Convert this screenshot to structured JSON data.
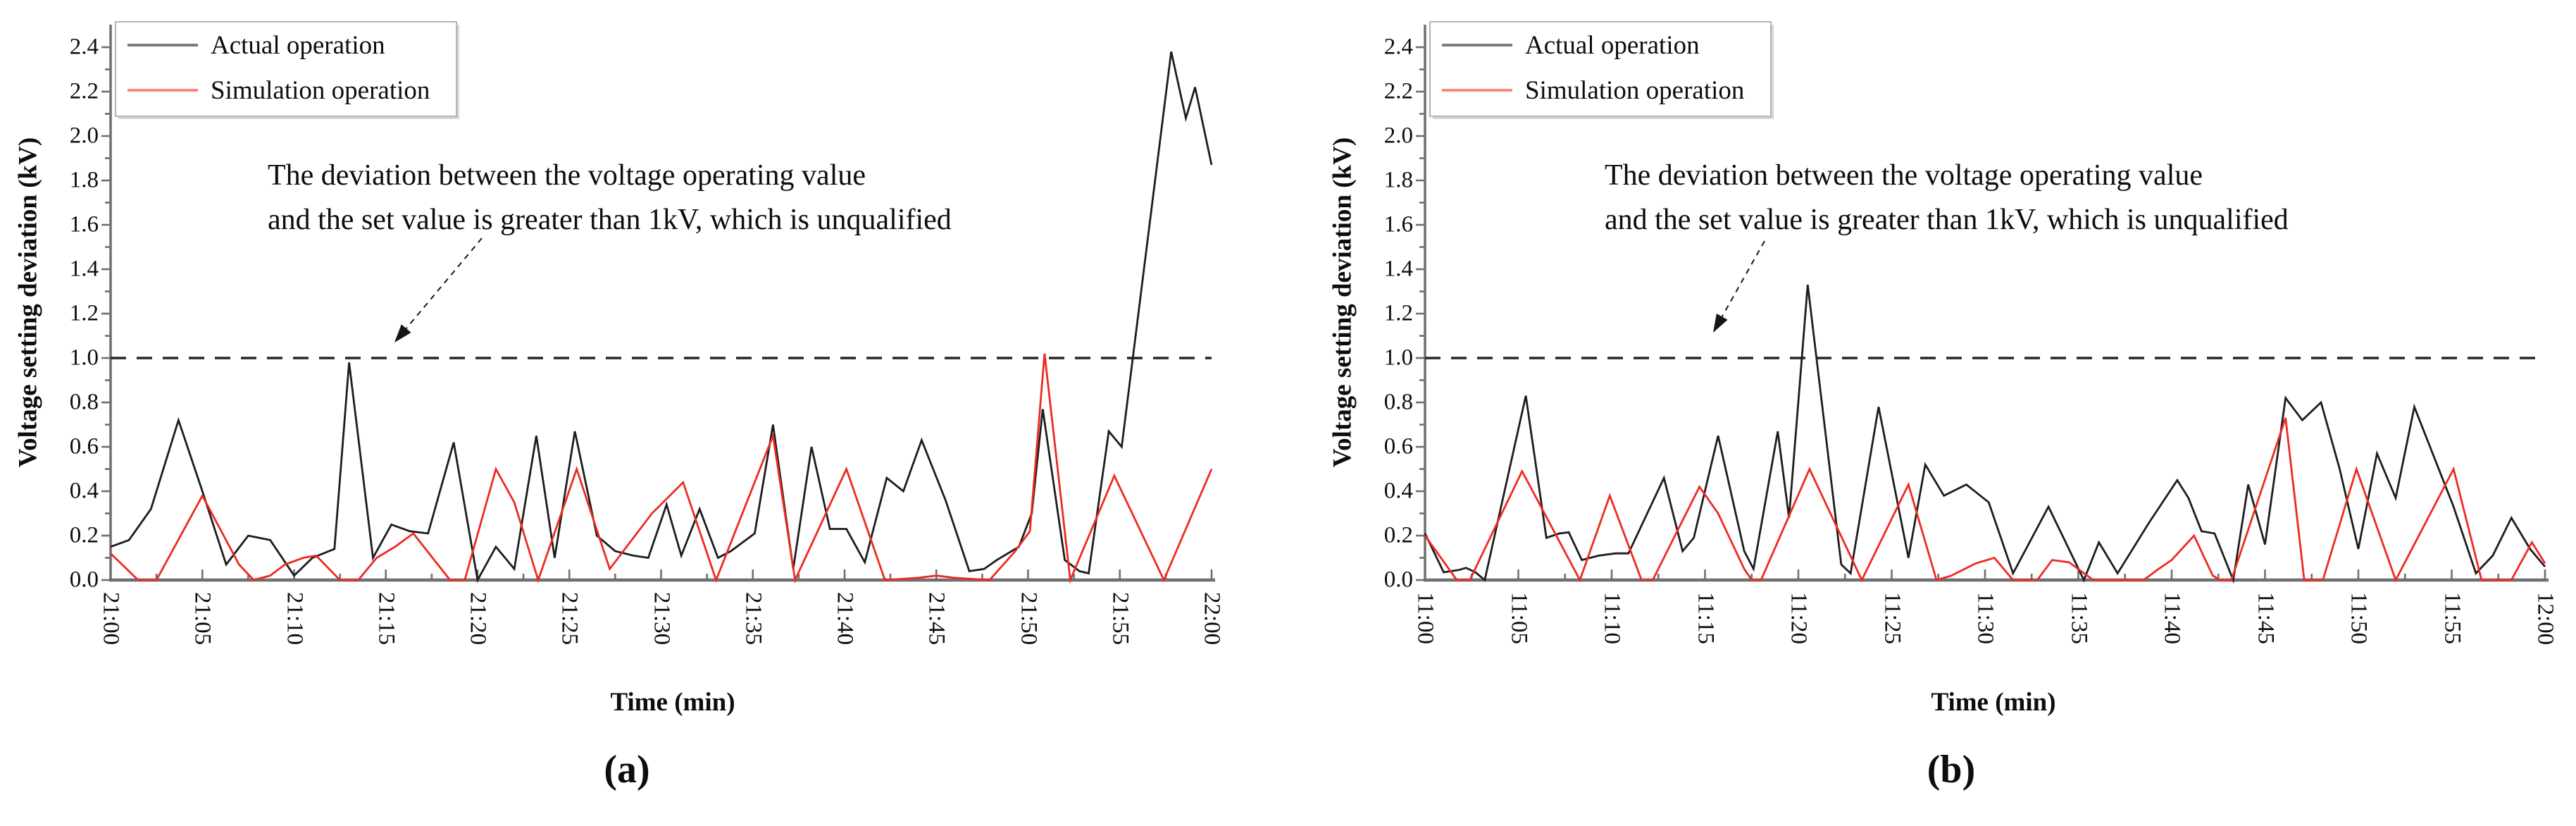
{
  "figure": {
    "captions": [
      "(a)",
      "(b)"
    ]
  },
  "colors": {
    "actual": "#1d1d1d",
    "simulation": "#ee2a21",
    "actual_legend_sample": "#7b7b7b",
    "simulation_legend_sample": "#fa867e",
    "axis": "#6f6f6f",
    "threshold_dash": "#262626",
    "text": "#0d0d0d"
  },
  "chart_data": [
    {
      "type": "line",
      "panel": "a",
      "xlabel": "Time (min)",
      "ylabel": "Voltage setting deviation (kV)",
      "x_tick_labels": [
        "21:00",
        "21:05",
        "21:10",
        "21:15",
        "21:20",
        "21:25",
        "21:30",
        "21:35",
        "21:40",
        "21:45",
        "21:50",
        "21:55",
        "22:00"
      ],
      "x_minor_tick_minutes": 2.5,
      "x_range_minutes": [
        0,
        60
      ],
      "y_tick_labels": [
        "0.0",
        "0.2",
        "0.4",
        "0.6",
        "0.8",
        "1.0",
        "1.2",
        "1.4",
        "1.6",
        "1.8",
        "2.0",
        "2.2",
        "2.4"
      ],
      "ylim": [
        0,
        2.5
      ],
      "grid": false,
      "legend_position": "top-left",
      "threshold": {
        "value": 1.0,
        "style": "dashed",
        "label_lines": [
          "The deviation between the voltage operating value",
          "and the set value is greater than 1kV, which is unqualified"
        ]
      },
      "series": [
        {
          "name": "Actual operation",
          "color_key": "actual",
          "points": [
            [
              0,
              0.15
            ],
            [
              1,
              0.18
            ],
            [
              2.2,
              0.32
            ],
            [
              3.7,
              0.72
            ],
            [
              5,
              0.4
            ],
            [
              6.3,
              0.07
            ],
            [
              7.5,
              0.2
            ],
            [
              8.7,
              0.18
            ],
            [
              10,
              0.02
            ],
            [
              11,
              0.1
            ],
            [
              12.2,
              0.14
            ],
            [
              13,
              0.98
            ],
            [
              14.3,
              0.1
            ],
            [
              15.3,
              0.25
            ],
            [
              16.3,
              0.22
            ],
            [
              17.3,
              0.21
            ],
            [
              18.7,
              0.62
            ],
            [
              20,
              0.0
            ],
            [
              21,
              0.15
            ],
            [
              22,
              0.05
            ],
            [
              23.2,
              0.65
            ],
            [
              24.2,
              0.1
            ],
            [
              25.3,
              0.67
            ],
            [
              26.5,
              0.2
            ],
            [
              27.5,
              0.13
            ],
            [
              28.5,
              0.11
            ],
            [
              29.3,
              0.1
            ],
            [
              30.3,
              0.34
            ],
            [
              31.1,
              0.11
            ],
            [
              32.1,
              0.32
            ],
            [
              33.1,
              0.1
            ],
            [
              33.8,
              0.13
            ],
            [
              35.1,
              0.21
            ],
            [
              36.1,
              0.7
            ],
            [
              37.2,
              0.05
            ],
            [
              38.2,
              0.6
            ],
            [
              39.2,
              0.23
            ],
            [
              40.1,
              0.23
            ],
            [
              41.1,
              0.08
            ],
            [
              42.3,
              0.46
            ],
            [
              43.2,
              0.4
            ],
            [
              44.2,
              0.63
            ],
            [
              45.5,
              0.36
            ],
            [
              46.8,
              0.04
            ],
            [
              47.6,
              0.05
            ],
            [
              48.3,
              0.09
            ],
            [
              49.5,
              0.15
            ],
            [
              50.2,
              0.3
            ],
            [
              50.8,
              0.77
            ],
            [
              52,
              0.09
            ],
            [
              52.8,
              0.04
            ],
            [
              53.3,
              0.03
            ],
            [
              54.4,
              0.67
            ],
            [
              55.1,
              0.6
            ],
            [
              57.8,
              2.38
            ],
            [
              58.6,
              2.08
            ],
            [
              59.1,
              2.22
            ],
            [
              60,
              1.87
            ]
          ]
        },
        {
          "name": "Simulation operation",
          "color_key": "simulation",
          "points": [
            [
              0,
              0.12
            ],
            [
              1.5,
              0
            ],
            [
              2.5,
              0
            ],
            [
              5,
              0.38
            ],
            [
              7,
              0.07
            ],
            [
              7.8,
              0
            ],
            [
              8.7,
              0.02
            ],
            [
              9.5,
              0.07
            ],
            [
              10.5,
              0.1
            ],
            [
              11.2,
              0.11
            ],
            [
              12.5,
              0
            ],
            [
              13.5,
              0
            ],
            [
              14.5,
              0.1
            ],
            [
              15.5,
              0.15
            ],
            [
              16.5,
              0.21
            ],
            [
              18.5,
              0
            ],
            [
              19.3,
              0
            ],
            [
              21,
              0.5
            ],
            [
              22,
              0.35
            ],
            [
              23.3,
              0
            ],
            [
              25.4,
              0.5
            ],
            [
              27.2,
              0.05
            ],
            [
              29.5,
              0.3
            ],
            [
              31.2,
              0.44
            ],
            [
              33,
              0
            ],
            [
              36.1,
              0.65
            ],
            [
              37.3,
              0
            ],
            [
              40.1,
              0.5
            ],
            [
              42.2,
              0
            ],
            [
              44,
              0.01
            ],
            [
              45,
              0.02
            ],
            [
              46,
              0.01
            ],
            [
              47.9,
              0
            ],
            [
              49.3,
              0.13
            ],
            [
              50.1,
              0.22
            ],
            [
              50.9,
              1.02
            ],
            [
              52.3,
              0
            ],
            [
              54.7,
              0.47
            ],
            [
              57.4,
              0
            ],
            [
              60,
              0.5
            ]
          ]
        }
      ]
    },
    {
      "type": "line",
      "panel": "b",
      "xlabel": "Time (min)",
      "ylabel": "Voltage setting deviation (kV)",
      "x_tick_labels": [
        "11:00",
        "11:05",
        "11:10",
        "11:15",
        "11:20",
        "11:25",
        "11:30",
        "11:35",
        "11:40",
        "11:45",
        "11:50",
        "11:55",
        "12:00"
      ],
      "x_minor_tick_minutes": 2.5,
      "x_range_minutes": [
        0,
        60
      ],
      "y_tick_labels": [
        "0.0",
        "0.2",
        "0.4",
        "0.6",
        "0.8",
        "1.0",
        "1.2",
        "1.4",
        "1.6",
        "1.8",
        "2.0",
        "2.2",
        "2.4"
      ],
      "ylim": [
        0,
        2.5
      ],
      "grid": false,
      "legend_position": "top-left",
      "threshold": {
        "value": 1.0,
        "style": "dashed",
        "label_lines": [
          "The deviation between the voltage operating value",
          "and the set value is greater than 1kV, which is unqualified"
        ]
      },
      "series": [
        {
          "name": "Actual operation",
          "color_key": "actual",
          "points": [
            [
              0,
              0.21
            ],
            [
              1,
              0.035
            ],
            [
              1.8,
              0.045
            ],
            [
              2.2,
              0.055
            ],
            [
              2.7,
              0.035
            ],
            [
              3.2,
              0
            ],
            [
              5.4,
              0.83
            ],
            [
              6.5,
              0.19
            ],
            [
              7.2,
              0.21
            ],
            [
              7.7,
              0.215
            ],
            [
              8.4,
              0.09
            ],
            [
              9.3,
              0.11
            ],
            [
              10.2,
              0.12
            ],
            [
              10.9,
              0.12
            ],
            [
              12.8,
              0.46
            ],
            [
              13.8,
              0.13
            ],
            [
              14.4,
              0.19
            ],
            [
              15.7,
              0.65
            ],
            [
              17.1,
              0.13
            ],
            [
              17.6,
              0.05
            ],
            [
              18.9,
              0.67
            ],
            [
              19.5,
              0.28
            ],
            [
              20.5,
              1.33
            ],
            [
              22.3,
              0.07
            ],
            [
              22.8,
              0.03
            ],
            [
              24.3,
              0.78
            ],
            [
              25.9,
              0.1
            ],
            [
              26.8,
              0.52
            ],
            [
              27.8,
              0.38
            ],
            [
              29,
              0.43
            ],
            [
              30.2,
              0.35
            ],
            [
              31.5,
              0.03
            ],
            [
              33.4,
              0.33
            ],
            [
              35.3,
              0
            ],
            [
              36.1,
              0.17
            ],
            [
              37.1,
              0.03
            ],
            [
              38.8,
              0.26
            ],
            [
              40.3,
              0.45
            ],
            [
              40.9,
              0.37
            ],
            [
              41.6,
              0.22
            ],
            [
              42.3,
              0.21
            ],
            [
              43.3,
              0
            ],
            [
              44.1,
              0.43
            ],
            [
              45,
              0.16
            ],
            [
              46.1,
              0.82
            ],
            [
              47,
              0.72
            ],
            [
              48,
              0.8
            ],
            [
              49,
              0.5
            ],
            [
              50,
              0.14
            ],
            [
              51,
              0.57
            ],
            [
              52,
              0.37
            ],
            [
              53,
              0.78
            ],
            [
              55.1,
              0.33
            ],
            [
              56.3,
              0.03
            ],
            [
              57.2,
              0.11
            ],
            [
              58.2,
              0.28
            ],
            [
              59.2,
              0.14
            ],
            [
              60,
              0.06
            ]
          ]
        },
        {
          "name": "Simulation operation",
          "color_key": "simulation",
          "points": [
            [
              0,
              0.2
            ],
            [
              1.7,
              0
            ],
            [
              2.4,
              0
            ],
            [
              5.2,
              0.49
            ],
            [
              8.3,
              0
            ],
            [
              9.9,
              0.38
            ],
            [
              11.6,
              0
            ],
            [
              12.2,
              0
            ],
            [
              14.7,
              0.42
            ],
            [
              15.7,
              0.3
            ],
            [
              17.1,
              0.05
            ],
            [
              17.5,
              0
            ],
            [
              18,
              0
            ],
            [
              20.6,
              0.5
            ],
            [
              23.4,
              0
            ],
            [
              25.9,
              0.43
            ],
            [
              27.4,
              0
            ],
            [
              28.2,
              0.02
            ],
            [
              29.5,
              0.075
            ],
            [
              30.5,
              0.1
            ],
            [
              31.5,
              0
            ],
            [
              32.8,
              0
            ],
            [
              33.6,
              0.09
            ],
            [
              34.5,
              0.08
            ],
            [
              35.8,
              0
            ],
            [
              38.5,
              0
            ],
            [
              39.3,
              0.05
            ],
            [
              40,
              0.09
            ],
            [
              41.2,
              0.2
            ],
            [
              42.2,
              0.02
            ],
            [
              42.6,
              0
            ],
            [
              43.2,
              0
            ],
            [
              46.1,
              0.73
            ],
            [
              47.1,
              0
            ],
            [
              48.1,
              0
            ],
            [
              49.9,
              0.5
            ],
            [
              52,
              0
            ],
            [
              55.1,
              0.5
            ],
            [
              56.6,
              0
            ],
            [
              58.2,
              0
            ],
            [
              59.3,
              0.17
            ],
            [
              60,
              0.075
            ]
          ]
        }
      ]
    }
  ]
}
